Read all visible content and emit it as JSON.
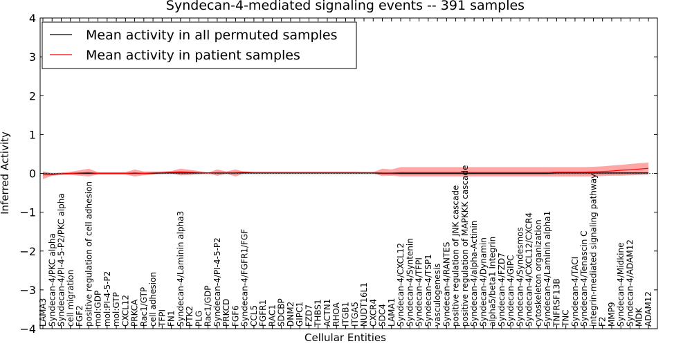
{
  "chart_data": {
    "type": "line",
    "title": "Syndecan-4-mediated signaling events -- 391 samples",
    "xlabel": "Cellular Entities",
    "ylabel": "Inferred Activity",
    "ylim": [
      -4,
      4
    ],
    "yticks": [
      "−4",
      "−3",
      "−2",
      "−1",
      "0",
      "1",
      "2",
      "3",
      "4"
    ],
    "legend": {
      "placement": "top-left",
      "entries": [
        {
          "label": "Mean activity in all permuted samples",
          "color": "#000000"
        },
        {
          "label": "Mean activity in patient samples",
          "color": "#ff0000"
        }
      ]
    },
    "categories": [
      "LAMA3",
      "Syndecan-4/PKC alpha",
      "Syndecan-4/PI-4-5-P2/PKC alpha",
      "cell migration",
      "FGF2",
      "positive regulation of cell adhesion",
      "mol:GDP",
      "mol:PI-4-5-P2",
      "mol:GTP",
      "CXCL12",
      "PRKCA",
      "Rac1/GTP",
      "cell adhesion",
      "TFPI",
      "FN1",
      "Syndecan-4/Laminin alpha3",
      "PTK2",
      "PLG",
      "Rac1/GDP",
      "Syndecan-4/PI-4-5-P2",
      "PRKCD",
      "FGF6",
      "Syndecan-4/FGFR1/FGF",
      "CCL5",
      "FGFR1",
      "RAC1",
      "SDCBP",
      "DNM2",
      "GIPC1",
      "FZD7",
      "THBS1",
      "ACTN1",
      "RHOA",
      "ITGB1",
      "ITGA5",
      "NUDT16L1",
      "CXCR4",
      "SDC4",
      "LAMA1",
      "Syndecan-4/CXCL12",
      "Syndecan-4/Syntenin",
      "Syndecan-4/TFPI",
      "Syndecan-4/TSP1",
      "vasculogenesis",
      "Syndecan-4/RANTES",
      "positive regulation of JNK cascade",
      "positive regulation of MAPKKK cascade",
      "Syndecan-4/alpha-Actinin",
      "Syndecan-4/Dynamin",
      "alpha5/beta1 Integrin",
      "Syndecan-4/FZD7",
      "Syndecan-4/GIPC",
      "Syndecan-4/Syndesmos",
      "Syndecan-4/CXCL12/CXCR4",
      "cytoskeleton organization",
      "Syndecan-4/Laminin alpha1",
      "TNFRSF13B",
      "TNC",
      "Syndecan-4/TACI",
      "Syndecan-4/Tenascin C",
      "integrin-mediated signaling pathway",
      "F2",
      "MMP9",
      "Syndecan-4/Midkine",
      "Syndecan-4/ADAM12",
      "MDK",
      "ADAM12"
    ],
    "series": [
      {
        "name": "Mean activity in patient samples",
        "color": "#ff0000",
        "values": [
          -0.02,
          -0.03,
          -0.01,
          0.0,
          0.01,
          0.02,
          0.0,
          0.0,
          0.0,
          0.0,
          0.01,
          0.0,
          0.01,
          0.02,
          0.03,
          0.04,
          0.03,
          0.02,
          0.01,
          0.02,
          0.02,
          0.02,
          0.03,
          0.02,
          0.02,
          0.02,
          0.02,
          0.02,
          0.02,
          0.02,
          0.02,
          0.02,
          0.02,
          0.02,
          0.02,
          0.02,
          0.02,
          0.01,
          0.01,
          0.02,
          0.02,
          0.02,
          0.02,
          0.02,
          0.02,
          0.02,
          0.02,
          0.02,
          0.02,
          0.02,
          0.02,
          0.02,
          0.02,
          0.02,
          0.02,
          0.02,
          0.03,
          0.03,
          0.03,
          0.03,
          0.04,
          0.05,
          0.06,
          0.08,
          0.09,
          0.11,
          0.13
        ],
        "upper": [
          0.05,
          0.0,
          0.02,
          0.04,
          0.08,
          0.12,
          0.03,
          0.03,
          0.03,
          0.03,
          0.1,
          0.05,
          0.05,
          0.05,
          0.06,
          0.12,
          0.09,
          0.06,
          0.02,
          0.1,
          0.05,
          0.1,
          0.04,
          0.04,
          0.04,
          0.04,
          0.04,
          0.04,
          0.04,
          0.04,
          0.04,
          0.04,
          0.04,
          0.04,
          0.04,
          0.03,
          0.03,
          0.12,
          0.1,
          0.16,
          0.16,
          0.16,
          0.16,
          0.16,
          0.16,
          0.16,
          0.16,
          0.16,
          0.16,
          0.16,
          0.16,
          0.16,
          0.16,
          0.16,
          0.16,
          0.16,
          0.16,
          0.16,
          0.16,
          0.16,
          0.17,
          0.18,
          0.2,
          0.22,
          0.24,
          0.26,
          0.28
        ],
        "lower": [
          -0.15,
          -0.06,
          -0.04,
          -0.04,
          -0.06,
          -0.08,
          -0.03,
          -0.03,
          -0.03,
          -0.03,
          -0.08,
          -0.05,
          -0.03,
          -0.01,
          0.0,
          -0.05,
          -0.04,
          -0.02,
          0.0,
          -0.06,
          -0.01,
          -0.08,
          0.01,
          0.0,
          0.0,
          0.0,
          0.0,
          0.0,
          0.0,
          0.0,
          0.0,
          0.0,
          0.0,
          0.0,
          0.0,
          0.0,
          0.0,
          -0.07,
          -0.06,
          -0.08,
          -0.08,
          -0.08,
          -0.08,
          -0.08,
          -0.08,
          -0.08,
          -0.08,
          -0.08,
          -0.08,
          -0.08,
          -0.08,
          -0.08,
          -0.08,
          -0.08,
          -0.08,
          -0.08,
          -0.08,
          -0.08,
          -0.08,
          -0.08,
          -0.08,
          -0.07,
          -0.06,
          -0.06,
          -0.05,
          -0.04,
          -0.03
        ]
      },
      {
        "name": "Mean activity in all permuted samples",
        "color": "#000000",
        "values": [
          -0.01,
          -0.02,
          -0.01,
          0.0,
          0.0,
          0.0,
          0.0,
          0.0,
          0.0,
          0.0,
          0.0,
          0.0,
          0.0,
          0.01,
          0.01,
          0.01,
          0.01,
          0.01,
          0.01,
          0.01,
          0.01,
          0.01,
          0.01,
          0.01,
          0.01,
          0.01,
          0.01,
          0.01,
          0.01,
          0.01,
          0.01,
          0.01,
          0.01,
          0.01,
          0.01,
          0.01,
          0.01,
          0.0,
          0.0,
          0.0,
          0.0,
          0.0,
          0.0,
          0.0,
          0.0,
          0.0,
          0.0,
          0.0,
          0.0,
          0.0,
          0.0,
          0.0,
          0.0,
          0.0,
          0.0,
          0.0,
          0.01,
          0.01,
          0.01,
          0.01,
          0.01,
          0.01,
          0.01,
          0.01,
          0.01,
          0.01,
          0.01
        ],
        "upper": [
          0.04,
          0.02,
          0.02,
          0.02,
          0.02,
          0.02,
          0.02,
          0.02,
          0.02,
          0.02,
          0.02,
          0.02,
          0.02,
          0.02,
          0.02,
          0.02,
          0.02,
          0.02,
          0.02,
          0.02,
          0.02,
          0.02,
          0.02,
          0.02,
          0.02,
          0.02,
          0.02,
          0.02,
          0.02,
          0.02,
          0.02,
          0.02,
          0.02,
          0.02,
          0.02,
          0.02,
          0.02,
          0.02,
          0.02,
          0.02,
          0.02,
          0.02,
          0.02,
          0.02,
          0.02,
          0.02,
          0.02,
          0.02,
          0.02,
          0.02,
          0.02,
          0.02,
          0.02,
          0.02,
          0.02,
          0.02,
          0.02,
          0.02,
          0.02,
          0.02,
          0.02,
          0.02,
          0.02,
          0.02,
          0.02,
          0.02,
          0.02
        ],
        "lower": [
          -0.06,
          -0.05,
          -0.04,
          -0.03,
          -0.03,
          -0.03,
          -0.03,
          -0.03,
          -0.03,
          -0.03,
          -0.03,
          -0.03,
          -0.03,
          -0.03,
          -0.03,
          -0.03,
          -0.03,
          -0.03,
          -0.03,
          -0.03,
          -0.03,
          -0.03,
          -0.03,
          -0.03,
          -0.03,
          -0.03,
          -0.03,
          -0.03,
          -0.03,
          -0.03,
          -0.03,
          -0.03,
          -0.03,
          -0.03,
          -0.03,
          -0.03,
          -0.03,
          -0.04,
          -0.04,
          -0.04,
          -0.04,
          -0.04,
          -0.04,
          -0.04,
          -0.04,
          -0.04,
          -0.04,
          -0.04,
          -0.04,
          -0.04,
          -0.04,
          -0.04,
          -0.04,
          -0.04,
          -0.04,
          -0.04,
          -0.03,
          -0.03,
          -0.03,
          -0.03,
          -0.03,
          -0.03,
          -0.03,
          -0.03,
          -0.03,
          -0.03,
          -0.03
        ]
      }
    ],
    "grid": false,
    "dotted_zero_line": true
  }
}
